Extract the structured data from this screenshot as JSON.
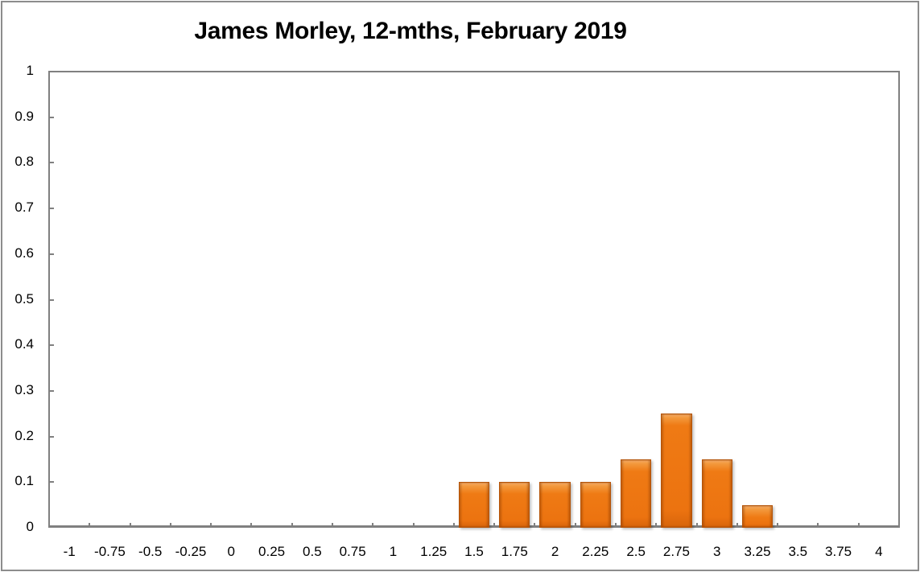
{
  "chart": {
    "title": "James Morley, 12-mths, February 2019",
    "bar_color": "#ef7a14",
    "axis_color": "#808080"
  },
  "chart_data": {
    "type": "bar",
    "title": "James Morley, 12-mths, February 2019",
    "xlabel": "",
    "ylabel": "",
    "categories": [
      "-1",
      "-0.75",
      "-0.5",
      "-0.25",
      "0",
      "0.25",
      "0.5",
      "0.75",
      "1",
      "1.25",
      "1.5",
      "1.75",
      "2",
      "2.25",
      "2.5",
      "2.75",
      "3",
      "3.25",
      "3.5",
      "3.75",
      "4"
    ],
    "values": [
      0,
      0,
      0,
      0,
      0,
      0,
      0,
      0,
      0,
      0,
      0.1,
      0.1,
      0.1,
      0.1,
      0.15,
      0.25,
      0.15,
      0.05,
      0,
      0,
      0
    ],
    "y_ticks": [
      "0",
      "0.1",
      "0.2",
      "0.3",
      "0.4",
      "0.5",
      "0.6",
      "0.7",
      "0.8",
      "0.9",
      "1"
    ],
    "ylim": [
      0,
      1
    ],
    "grid": false,
    "legend": null
  }
}
